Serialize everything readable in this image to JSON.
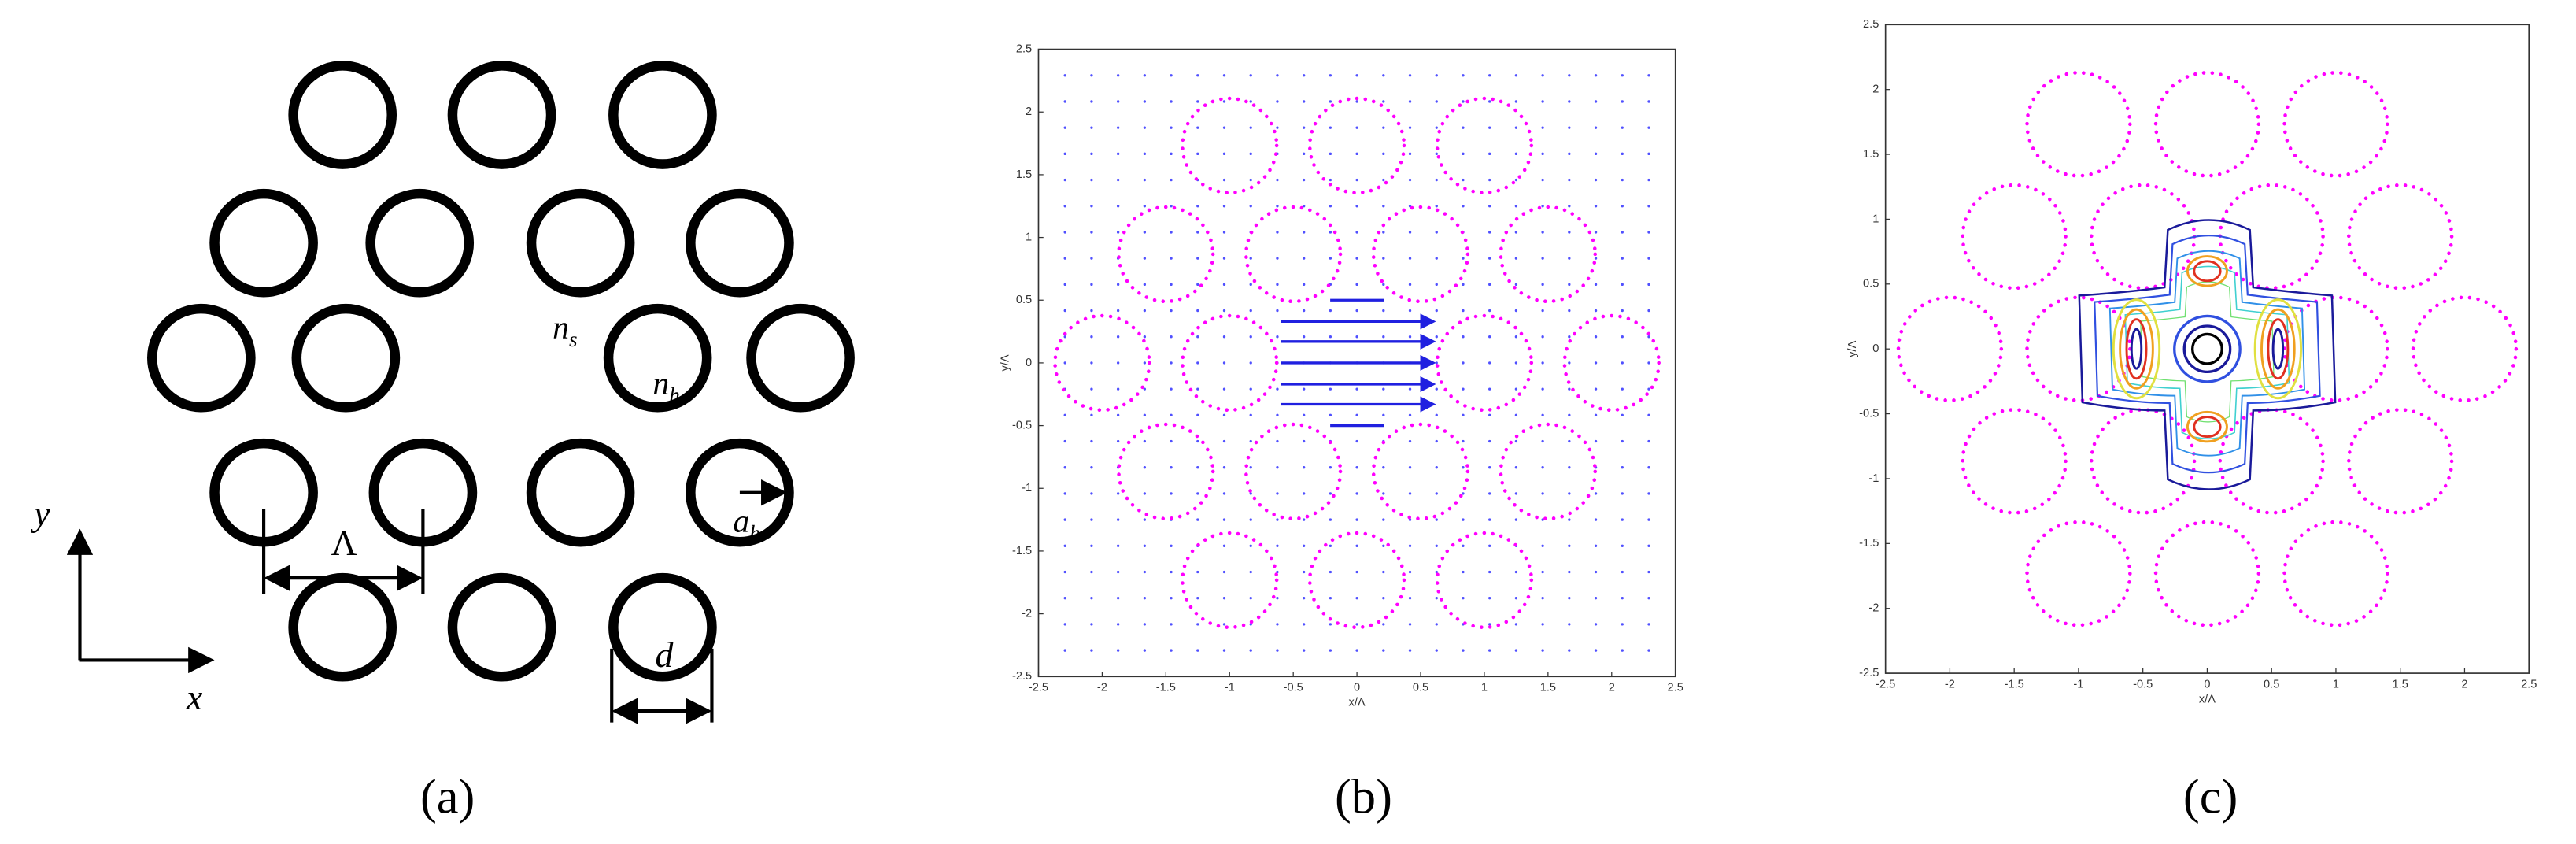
{
  "panel_a": {
    "label": "(a)",
    "n_s": {
      "base": "n",
      "sub": "s"
    },
    "n_h": {
      "base": "n",
      "sub": "h"
    },
    "a_h": {
      "base": "a",
      "sub": "h"
    },
    "pitch": "Λ",
    "diameter": "d",
    "x_axis": "x",
    "y_axis": "y"
  },
  "panel_b": {
    "label": "(b)",
    "xlabel": "x/Λ",
    "ylabel": "y/Λ",
    "xlim": [
      -2.5,
      2.5
    ],
    "ylim": [
      -2.5,
      2.5
    ],
    "xticks": [
      -2.5,
      -2,
      -1.5,
      -1,
      -0.5,
      0,
      0.5,
      1,
      1.5,
      2,
      2.5
    ],
    "yticks": [
      -2.5,
      -2,
      -1.5,
      -1,
      -0.5,
      0,
      0.5,
      1,
      1.5,
      2,
      2.5
    ]
  },
  "panel_c": {
    "label": "(c)",
    "xlabel": "x/Λ",
    "ylabel": "y/Λ",
    "xlim": [
      -2.5,
      2.5
    ],
    "ylim": [
      -2.5,
      2.5
    ],
    "xticks": [
      -2.5,
      -2,
      -1.5,
      -1,
      -0.5,
      0,
      0.5,
      1,
      1.5,
      2,
      2.5
    ],
    "yticks": [
      -2.5,
      -2,
      -1.5,
      -1,
      -0.5,
      0,
      0.5,
      1,
      1.5,
      2,
      2.5
    ]
  }
}
